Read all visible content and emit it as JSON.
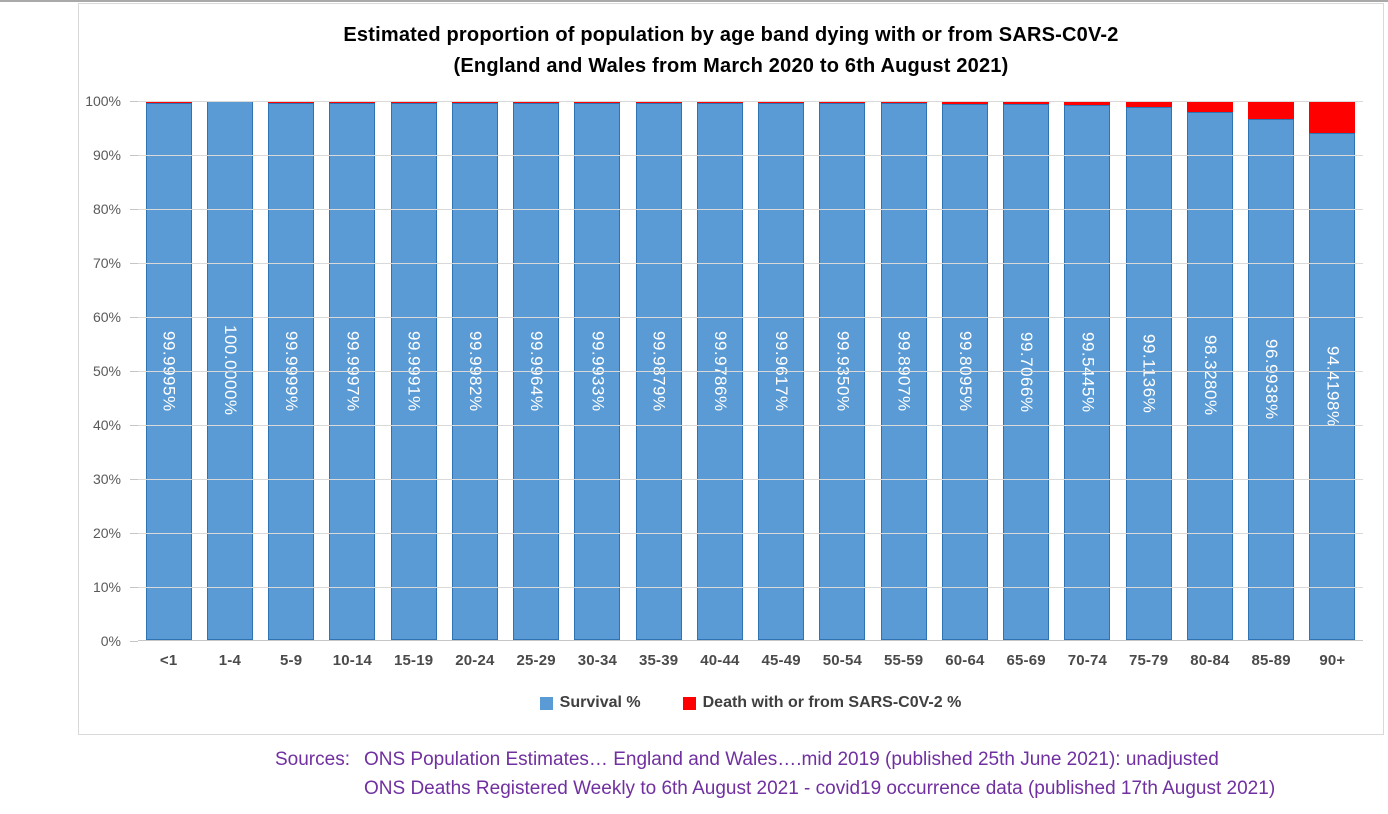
{
  "chart": {
    "title_line1": "Estimated proportion of population by age band dying with or from SARS-C0V-2",
    "title_line2": "(England and Wales from March 2020 to 6th August 2021)"
  },
  "chart_data": {
    "type": "bar",
    "stacked": true,
    "orientation": "vertical",
    "title": "Estimated proportion of population by age band dying with or from SARS-C0V-2 (England and Wales from March 2020 to 6th August 2021)",
    "xlabel": "",
    "ylabel": "",
    "ylim": [
      0,
      100
    ],
    "y_tick_step": 10,
    "y_tick_labels": [
      "0%",
      "10%",
      "20%",
      "30%",
      "40%",
      "50%",
      "60%",
      "70%",
      "80%",
      "90%",
      "100%"
    ],
    "grid": true,
    "legend_position": "bottom",
    "categories": [
      "<1",
      "1-4",
      "5-9",
      "10-14",
      "15-19",
      "20-24",
      "25-29",
      "30-34",
      "35-39",
      "40-44",
      "45-49",
      "50-54",
      "55-59",
      "60-64",
      "65-69",
      "70-74",
      "75-79",
      "80-84",
      "85-89",
      "90+"
    ],
    "series": [
      {
        "name": "Survival %",
        "color": "#5b9bd5",
        "values": [
          99.9995,
          100.0,
          99.9999,
          99.9997,
          99.9991,
          99.9982,
          99.9964,
          99.9933,
          99.9879,
          99.9786,
          99.9617,
          99.935,
          99.8907,
          99.8095,
          99.7066,
          99.5445,
          99.1136,
          98.328,
          96.9938,
          94.4198
        ]
      },
      {
        "name": "Death with or from SARS-C0V-2 %",
        "color": "#fe0000",
        "values": [
          0.0005,
          0.0,
          0.0001,
          0.0003,
          0.0009,
          0.0018,
          0.0036,
          0.0067,
          0.0121,
          0.0214,
          0.0383,
          0.065,
          0.1093,
          0.1905,
          0.2934,
          0.4555,
          0.8864,
          1.672,
          3.0062,
          5.5802
        ]
      }
    ],
    "bar_labels": [
      "99.9995%",
      "100.0000%",
      "99.9999%",
      "99.9997%",
      "99.9991%",
      "99.9982%",
      "99.9964%",
      "99.9933%",
      "99.9879%",
      "99.9786%",
      "99.9617%",
      "99.9350%",
      "99.8907%",
      "99.8095%",
      "99.7066%",
      "99.5445%",
      "99.1136%",
      "98.3280%",
      "96.9938%",
      "94.4198%"
    ]
  },
  "legend": {
    "survival": "Survival %",
    "death": "Death with or from SARS-C0V-2 %"
  },
  "sources": {
    "label": "Sources:",
    "line1": "ONS Population Estimates… England and Wales….mid 2019 (published 25th June 2021): unadjusted",
    "line2": "ONS Deaths Registered Weekly to 6th August 2021 - covid19 occurrence data (published 17th August 2021)"
  },
  "colors": {
    "survival_fill": "#5b9bd5",
    "survival_border": "#2e74b5",
    "death_fill": "#fe0000",
    "gridline": "#d9d9d9",
    "axis_label": "#595959",
    "x_label": "#4a4a4a",
    "title": "#000000",
    "sources_text": "#7030a0",
    "frame_border": "#d9d9d9"
  }
}
